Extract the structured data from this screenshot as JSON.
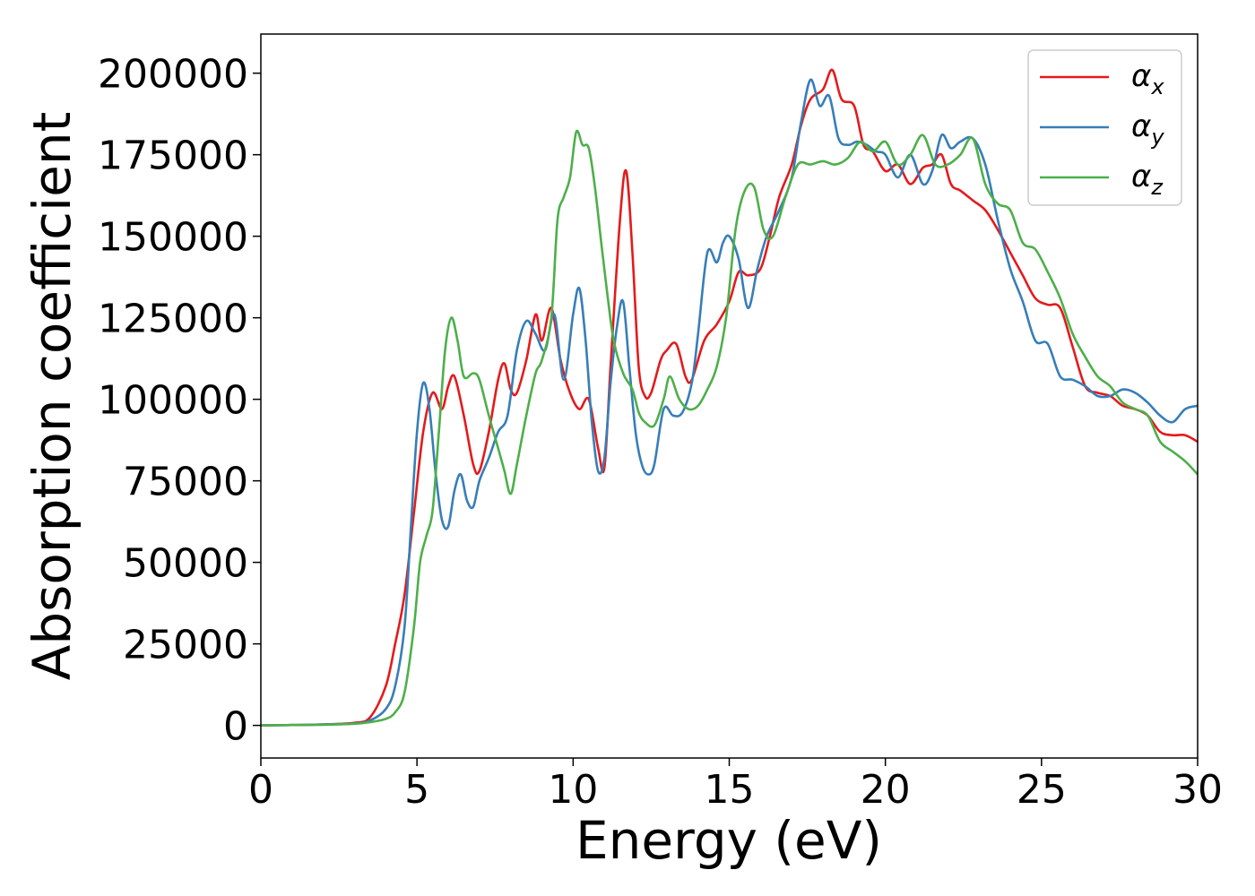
{
  "chart_data": {
    "type": "line",
    "xlabel": "Energy (eV)",
    "ylabel": "Absorption coefficient",
    "xlim": [
      0,
      30
    ],
    "ylim": [
      -10000,
      212000
    ],
    "xticks": [
      0,
      5,
      10,
      15,
      20,
      25,
      30
    ],
    "yticks": [
      0,
      25000,
      50000,
      75000,
      100000,
      125000,
      150000,
      175000,
      200000
    ],
    "grid": false,
    "legend_position": "top-right",
    "series": [
      {
        "name": "α",
        "subscript": "x",
        "color": "#e41a1c",
        "x": [
          0,
          1,
          2,
          3,
          3.5,
          4,
          4.3,
          4.6,
          4.9,
          5.2,
          5.5,
          5.8,
          6.0,
          6.2,
          6.5,
          6.8,
          7.0,
          7.3,
          7.6,
          7.8,
          8.0,
          8.2,
          8.5,
          8.8,
          9.0,
          9.3,
          9.6,
          9.9,
          10.2,
          10.5,
          10.8,
          11.0,
          11.2,
          11.5,
          11.7,
          11.9,
          12.1,
          12.3,
          12.5,
          12.8,
          13.0,
          13.3,
          13.6,
          13.8,
          14.2,
          14.6,
          15.0,
          15.3,
          15.6,
          16.0,
          16.3,
          16.6,
          17.0,
          17.3,
          17.6,
          18.0,
          18.3,
          18.6,
          19.0,
          19.3,
          19.6,
          20.0,
          20.4,
          20.8,
          21.2,
          21.5,
          21.8,
          22.1,
          22.4,
          22.8,
          23.2,
          23.6,
          24.0,
          24.4,
          24.8,
          25.2,
          25.6,
          26.0,
          26.4,
          26.8,
          27.2,
          27.6,
          28.0,
          28.4,
          28.8,
          29.2,
          29.6,
          30.0
        ],
        "values": [
          0,
          100,
          300,
          800,
          2500,
          12000,
          25000,
          40000,
          65000,
          90000,
          102000,
          97000,
          104000,
          107000,
          95000,
          80000,
          78000,
          90000,
          106000,
          111000,
          103000,
          102000,
          112000,
          126000,
          118000,
          128000,
          112000,
          102000,
          97000,
          100000,
          85000,
          79000,
          110000,
          155000,
          170000,
          145000,
          110000,
          101000,
          102000,
          112000,
          115000,
          117000,
          107000,
          106000,
          118000,
          123000,
          130000,
          139000,
          138000,
          140000,
          150000,
          162000,
          172000,
          184000,
          192000,
          195000,
          201000,
          192000,
          190000,
          178000,
          176000,
          170000,
          172000,
          166000,
          171000,
          172000,
          175000,
          166000,
          164000,
          161000,
          158000,
          152000,
          145000,
          138000,
          131000,
          129000,
          128000,
          116000,
          104000,
          102000,
          101000,
          98000,
          97000,
          95000,
          90000,
          89000,
          89000,
          87000
        ]
      },
      {
        "name": "α",
        "subscript": "y",
        "color": "#377eb8",
        "x": [
          0,
          1,
          2,
          3,
          3.5,
          4,
          4.3,
          4.6,
          4.8,
          5.0,
          5.2,
          5.4,
          5.6,
          5.8,
          6.0,
          6.2,
          6.4,
          6.6,
          6.8,
          7.0,
          7.3,
          7.6,
          7.9,
          8.2,
          8.5,
          8.8,
          9.1,
          9.4,
          9.7,
          10.0,
          10.2,
          10.4,
          10.6,
          10.8,
          11.0,
          11.2,
          11.4,
          11.6,
          11.8,
          12.0,
          12.2,
          12.4,
          12.6,
          12.9,
          13.2,
          13.5,
          13.8,
          14.0,
          14.3,
          14.6,
          14.8,
          15.0,
          15.3,
          15.6,
          15.9,
          16.2,
          16.6,
          17.0,
          17.3,
          17.6,
          17.9,
          18.2,
          18.5,
          18.8,
          19.1,
          19.4,
          19.7,
          20.0,
          20.4,
          20.8,
          21.2,
          21.5,
          21.8,
          22.1,
          22.4,
          22.8,
          23.2,
          23.6,
          24.0,
          24.4,
          24.8,
          25.2,
          25.6,
          26.0,
          26.4,
          26.8,
          27.2,
          27.6,
          28.0,
          28.4,
          28.8,
          29.2,
          29.6,
          30.0
        ],
        "values": [
          0,
          100,
          300,
          600,
          1500,
          5000,
          12000,
          30000,
          60000,
          90000,
          105000,
          97000,
          77000,
          63000,
          61000,
          72000,
          77000,
          69000,
          67000,
          75000,
          82000,
          90000,
          95000,
          115000,
          124000,
          120000,
          115000,
          126000,
          106000,
          126000,
          134000,
          118000,
          93000,
          78000,
          82000,
          105000,
          122000,
          130000,
          110000,
          90000,
          80000,
          77000,
          80000,
          97000,
          95000,
          96000,
          105000,
          120000,
          145000,
          142000,
          148000,
          150000,
          143000,
          128000,
          140000,
          150000,
          158000,
          168000,
          185000,
          198000,
          190000,
          193000,
          180000,
          178000,
          179000,
          178000,
          176000,
          175000,
          168000,
          175000,
          166000,
          170000,
          181000,
          177000,
          179000,
          180000,
          172000,
          155000,
          140000,
          130000,
          118000,
          117000,
          107000,
          106000,
          104000,
          101000,
          101000,
          103000,
          102000,
          99000,
          95000,
          93000,
          97000,
          98000
        ]
      },
      {
        "name": "α",
        "subscript": "z",
        "color": "#4daf4a",
        "x": [
          0,
          1,
          2,
          3,
          3.5,
          4,
          4.3,
          4.6,
          4.9,
          5.1,
          5.3,
          5.5,
          5.7,
          5.9,
          6.1,
          6.3,
          6.5,
          6.8,
          7.0,
          7.3,
          7.6,
          7.8,
          8.0,
          8.2,
          8.5,
          8.8,
          9.0,
          9.3,
          9.5,
          9.7,
          9.9,
          10.1,
          10.3,
          10.5,
          10.7,
          10.9,
          11.1,
          11.3,
          11.6,
          11.9,
          12.1,
          12.3,
          12.6,
          12.9,
          13.1,
          13.4,
          13.7,
          14.0,
          14.3,
          14.6,
          14.9,
          15.2,
          15.5,
          15.8,
          16.1,
          16.4,
          16.8,
          17.2,
          17.6,
          18.0,
          18.4,
          18.8,
          19.2,
          19.6,
          20.0,
          20.4,
          20.8,
          21.2,
          21.6,
          22.0,
          22.4,
          22.8,
          23.2,
          23.6,
          24.0,
          24.4,
          24.8,
          25.2,
          25.6,
          26.0,
          26.4,
          26.8,
          27.2,
          27.6,
          28.0,
          28.4,
          28.8,
          29.2,
          29.6,
          30.0
        ],
        "values": [
          0,
          100,
          200,
          500,
          1000,
          2000,
          4000,
          10000,
          30000,
          50000,
          58000,
          66000,
          90000,
          115000,
          125000,
          118000,
          107000,
          108000,
          106000,
          95000,
          85000,
          78000,
          71000,
          80000,
          95000,
          108000,
          112000,
          125000,
          155000,
          162000,
          168000,
          182000,
          178000,
          177000,
          165000,
          148000,
          132000,
          118000,
          108000,
          103000,
          96000,
          93000,
          92000,
          100000,
          107000,
          100000,
          97000,
          98000,
          103000,
          110000,
          125000,
          152000,
          164000,
          165000,
          152000,
          150000,
          162000,
          172000,
          172000,
          173000,
          172000,
          174000,
          179000,
          176000,
          179000,
          172000,
          175000,
          181000,
          172000,
          172000,
          175000,
          180000,
          166000,
          160000,
          158000,
          148000,
          146000,
          139000,
          131000,
          120000,
          113000,
          107000,
          104000,
          99000,
          97000,
          95000,
          87000,
          84000,
          81000,
          77000
        ]
      }
    ]
  }
}
